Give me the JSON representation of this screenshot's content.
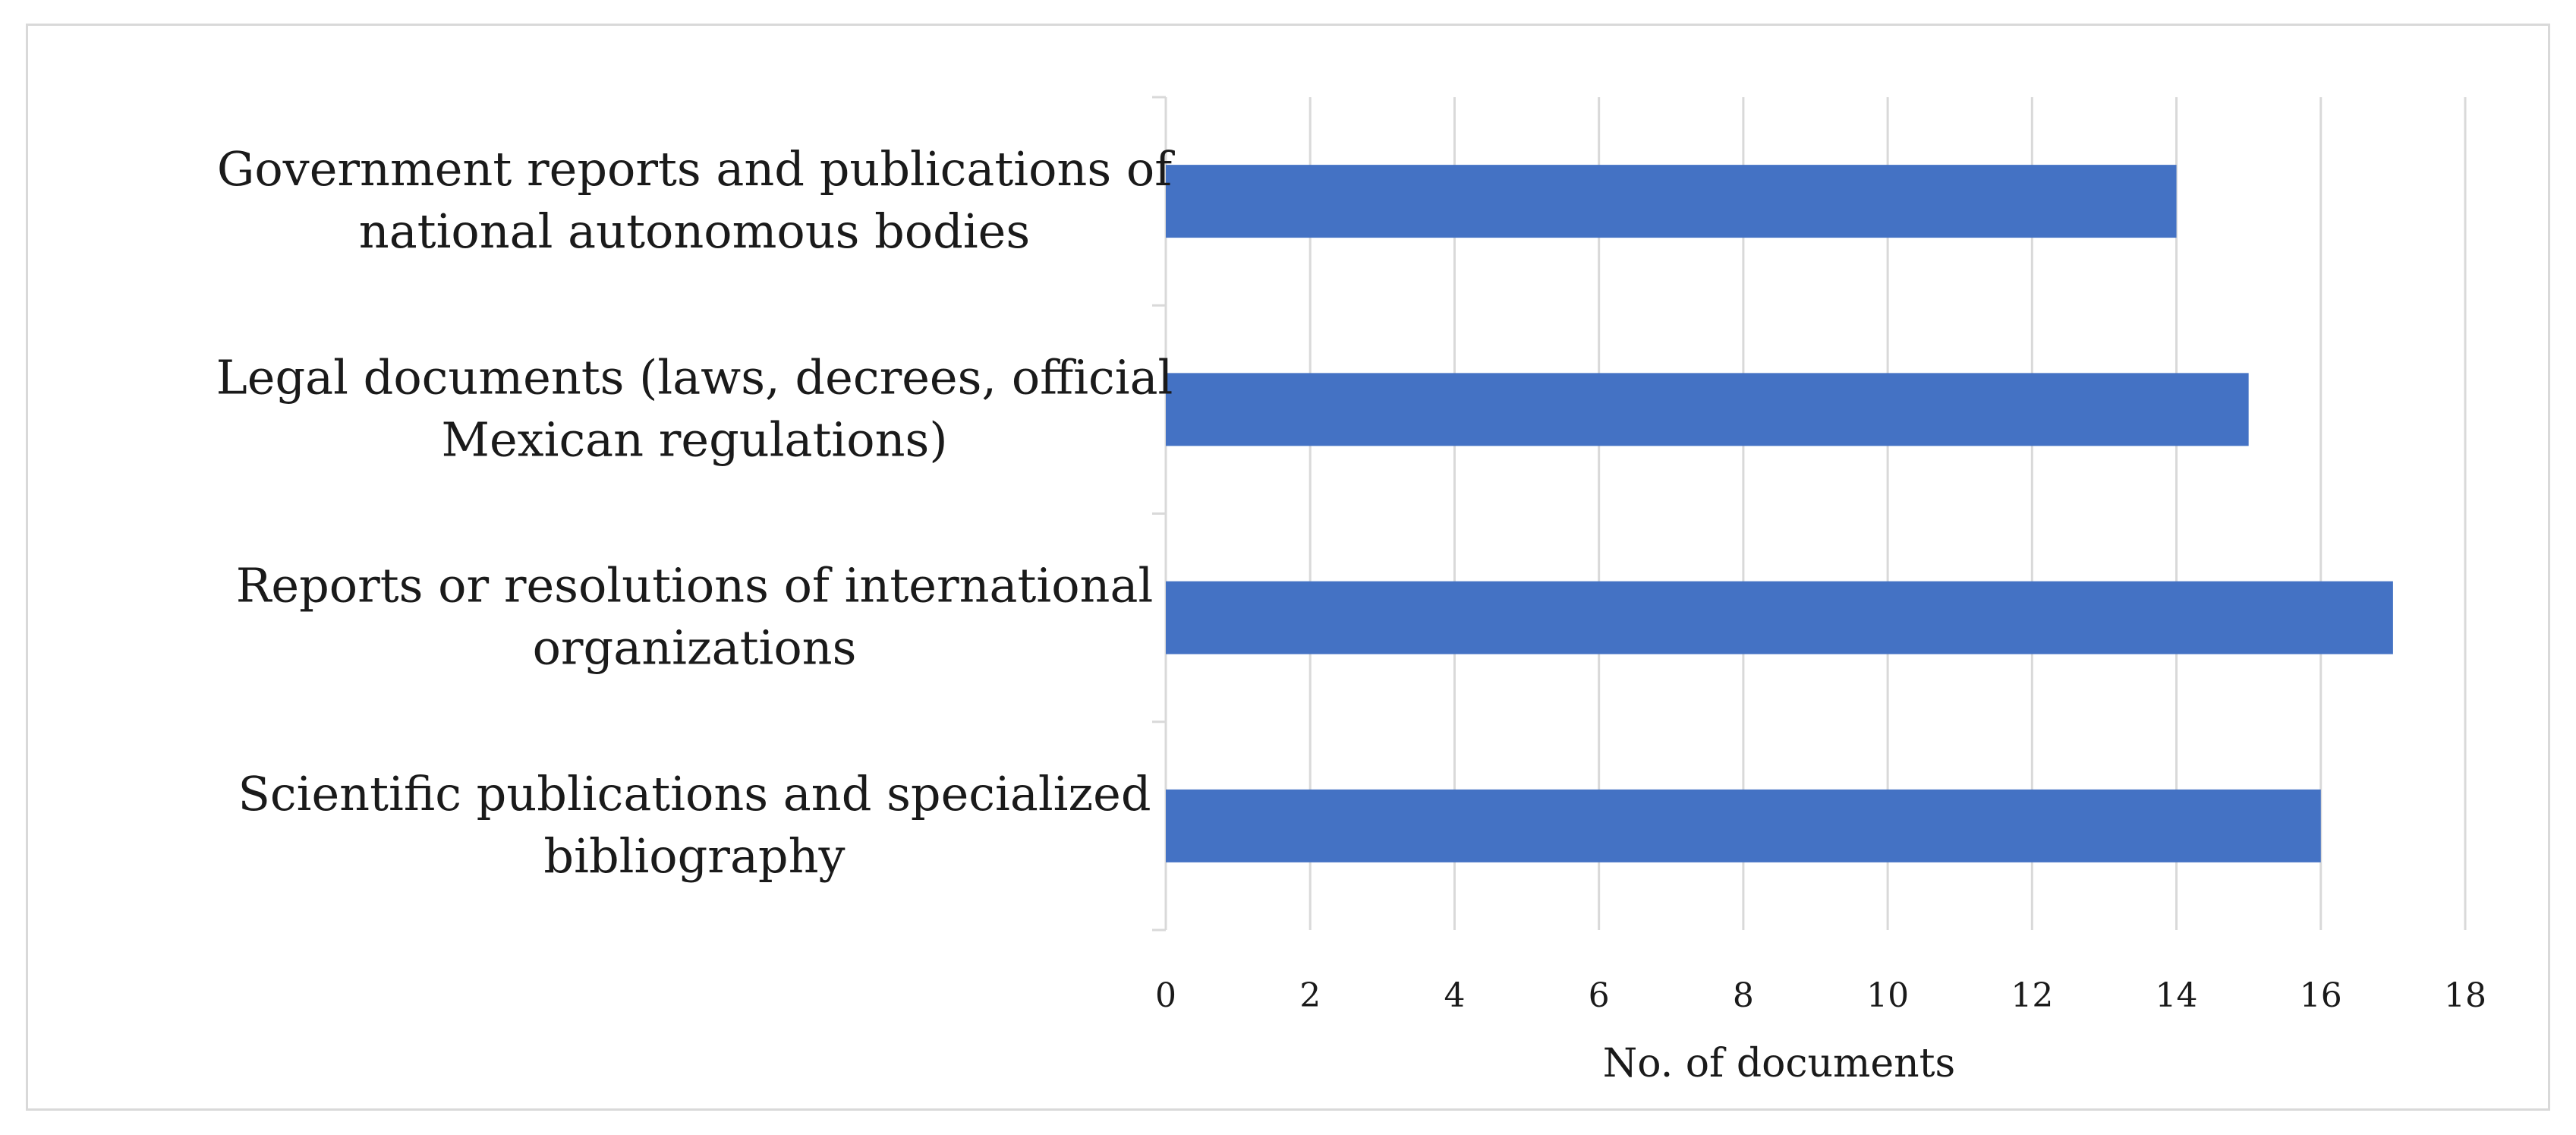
{
  "chart_data": {
    "type": "bar",
    "orientation": "horizontal",
    "categories": [
      [
        "Government reports and publications of",
        "national autonomous bodies"
      ],
      [
        "Legal documents (laws, decrees, official",
        "Mexican regulations)"
      ],
      [
        "Reports or resolutions of international",
        "organizations"
      ],
      [
        "Scientific publications and specialized",
        "bibliography"
      ]
    ],
    "values": [
      14,
      15,
      17,
      16
    ],
    "xlabel": "No. of documents",
    "ylabel": "",
    "title": "",
    "xlim": [
      0,
      18
    ],
    "xticks": [
      "0",
      "2",
      "4",
      "6",
      "8",
      "10",
      "12",
      "14",
      "16",
      "18"
    ],
    "grid": "vertical",
    "legend": "none",
    "bar_color": "#4472c4",
    "grid_color": "#d9d9d9",
    "frame_color": "#d9d9d9"
  }
}
